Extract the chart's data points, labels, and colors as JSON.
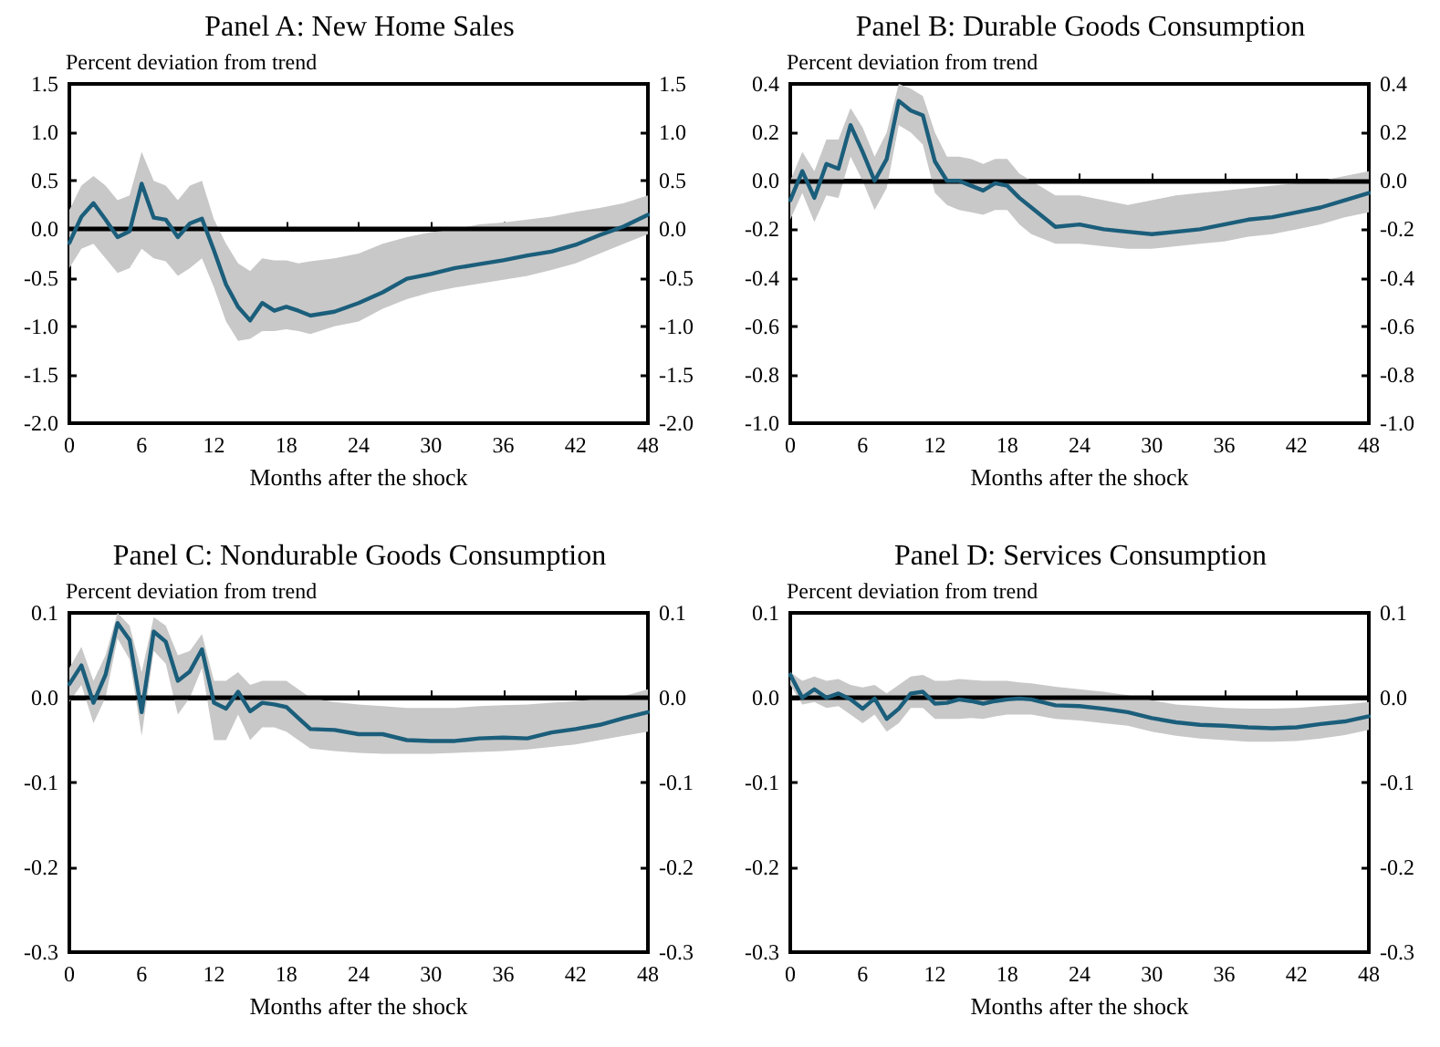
{
  "chart_data": [
    {
      "type": "line",
      "title": "Panel A: New Home Sales",
      "xlabel": "Months after the shock",
      "ylabel": "Percent deviation from trend",
      "xlim": [
        0,
        48
      ],
      "xticks": [
        0,
        6,
        12,
        18,
        24,
        30,
        36,
        42,
        48
      ],
      "ylim": [
        -2,
        1.5
      ],
      "yticks": [
        {
          "value": -2,
          "label": "-2.0"
        },
        {
          "value": -1.5,
          "label": "-1.5"
        },
        {
          "value": -1,
          "label": "-1.0"
        },
        {
          "value": -0.5,
          "label": "-0.5"
        },
        {
          "value": 0,
          "label": "0.0"
        },
        {
          "value": 0.5,
          "label": "0.5"
        },
        {
          "value": 1,
          "label": "1.0"
        },
        {
          "value": 1.5,
          "label": "1.5"
        }
      ],
      "y2lim": [
        -2,
        1.5
      ],
      "y2ticks": [
        {
          "value": -2,
          "label": "-2.0"
        },
        {
          "value": -1.5,
          "label": "-1.5"
        },
        {
          "value": -1,
          "label": "-1.0"
        },
        {
          "value": -0.5,
          "label": "-0.5"
        },
        {
          "value": 0,
          "label": "0.0"
        },
        {
          "value": 0.5,
          "label": "0.5"
        },
        {
          "value": 1,
          "label": "1.0"
        },
        {
          "value": 1.5,
          "label": "1.5"
        }
      ],
      "grid": false,
      "marker": "none",
      "line_style": "solid",
      "ref_lines": [
        {
          "axis": "y",
          "value": 0,
          "color": "#000000"
        }
      ],
      "series": [
        {
          "color": "#1b5e7b",
          "x": [
            0,
            1,
            2,
            3,
            4,
            5,
            6,
            7,
            8,
            9,
            10,
            11,
            12,
            13,
            14,
            15,
            16,
            17,
            18,
            19,
            20,
            22,
            24,
            26,
            28,
            30,
            32,
            34,
            36,
            38,
            40,
            42,
            44,
            46,
            48
          ],
          "values": [
            -0.14,
            0.13,
            0.27,
            0.1,
            -0.08,
            -0.02,
            0.47,
            0.12,
            0.1,
            -0.08,
            0.06,
            0.11,
            -0.22,
            -0.57,
            -0.8,
            -0.94,
            -0.76,
            -0.84,
            -0.8,
            -0.84,
            -0.89,
            -0.85,
            -0.76,
            -0.65,
            -0.51,
            -0.46,
            -0.4,
            -0.36,
            -0.32,
            -0.27,
            -0.23,
            -0.16,
            -0.06,
            0.03,
            0.15
          ],
          "lower": [
            -0.4,
            -0.2,
            -0.15,
            -0.3,
            -0.45,
            -0.4,
            -0.2,
            -0.3,
            -0.33,
            -0.48,
            -0.4,
            -0.3,
            -0.6,
            -0.95,
            -1.15,
            -1.13,
            -1.05,
            -1.05,
            -1.03,
            -1.05,
            -1.08,
            -1.0,
            -0.95,
            -0.82,
            -0.72,
            -0.65,
            -0.6,
            -0.56,
            -0.52,
            -0.48,
            -0.42,
            -0.35,
            -0.25,
            -0.15,
            -0.05
          ],
          "upper": [
            0.2,
            0.45,
            0.55,
            0.45,
            0.3,
            0.35,
            0.8,
            0.5,
            0.45,
            0.3,
            0.45,
            0.5,
            0.1,
            -0.15,
            -0.35,
            -0.43,
            -0.3,
            -0.32,
            -0.32,
            -0.35,
            -0.33,
            -0.3,
            -0.25,
            -0.15,
            -0.08,
            -0.03,
            0.0,
            0.05,
            0.07,
            0.1,
            0.13,
            0.18,
            0.22,
            0.27,
            0.35
          ]
        }
      ]
    },
    {
      "type": "line",
      "title": "Panel B: Durable Goods Consumption",
      "xlabel": "Months after the shock",
      "ylabel": "Percent deviation from trend",
      "xlim": [
        0,
        48
      ],
      "xticks": [
        0,
        6,
        12,
        18,
        24,
        30,
        36,
        42,
        48
      ],
      "ylim": [
        -1,
        0.4
      ],
      "yticks": [
        {
          "value": -1,
          "label": "-1.0"
        },
        {
          "value": -0.8,
          "label": "-0.8"
        },
        {
          "value": -0.6,
          "label": "-0.6"
        },
        {
          "value": -0.4,
          "label": "-0.4"
        },
        {
          "value": -0.2,
          "label": "-0.2"
        },
        {
          "value": 0,
          "label": "0.0"
        },
        {
          "value": 0.2,
          "label": "0.2"
        },
        {
          "value": 0.4,
          "label": "0.4"
        }
      ],
      "y2lim": [
        -1,
        0.4
      ],
      "y2ticks": [
        {
          "value": -1,
          "label": "-1.0"
        },
        {
          "value": -0.8,
          "label": "-0.8"
        },
        {
          "value": -0.6,
          "label": "-0.6"
        },
        {
          "value": -0.4,
          "label": "-0.4"
        },
        {
          "value": -0.2,
          "label": "-0.2"
        },
        {
          "value": 0,
          "label": "0.0"
        },
        {
          "value": 0.2,
          "label": "0.2"
        },
        {
          "value": 0.4,
          "label": "0.4"
        }
      ],
      "grid": false,
      "marker": "none",
      "line_style": "solid",
      "ref_lines": [
        {
          "axis": "y",
          "value": 0,
          "color": "#000000"
        }
      ],
      "series": [
        {
          "color": "#1b5e7b",
          "x": [
            0,
            1,
            2,
            3,
            4,
            5,
            6,
            7,
            8,
            9,
            10,
            11,
            12,
            13,
            14,
            15,
            16,
            17,
            18,
            19,
            20,
            22,
            24,
            26,
            28,
            30,
            32,
            34,
            36,
            38,
            40,
            42,
            44,
            46,
            48
          ],
          "values": [
            -0.08,
            0.04,
            -0.07,
            0.07,
            0.05,
            0.23,
            0.12,
            0.0,
            0.09,
            0.33,
            0.29,
            0.27,
            0.08,
            0.0,
            0.0,
            -0.02,
            -0.04,
            -0.01,
            -0.02,
            -0.07,
            -0.11,
            -0.19,
            -0.18,
            -0.2,
            -0.21,
            -0.22,
            -0.21,
            -0.2,
            -0.18,
            -0.16,
            -0.15,
            -0.13,
            -0.11,
            -0.08,
            -0.05
          ],
          "lower": [
            -0.16,
            -0.05,
            -0.17,
            -0.06,
            -0.07,
            0.1,
            0.0,
            -0.12,
            -0.03,
            0.23,
            0.2,
            0.15,
            -0.05,
            -0.1,
            -0.12,
            -0.13,
            -0.14,
            -0.12,
            -0.12,
            -0.18,
            -0.22,
            -0.26,
            -0.26,
            -0.27,
            -0.28,
            -0.28,
            -0.27,
            -0.26,
            -0.25,
            -0.23,
            -0.22,
            -0.2,
            -0.18,
            -0.15,
            -0.13
          ],
          "upper": [
            0.0,
            0.12,
            0.04,
            0.17,
            0.17,
            0.3,
            0.22,
            0.1,
            0.2,
            0.4,
            0.38,
            0.35,
            0.2,
            0.1,
            0.1,
            0.09,
            0.07,
            0.09,
            0.09,
            0.03,
            0.0,
            -0.06,
            -0.06,
            -0.08,
            -0.1,
            -0.08,
            -0.06,
            -0.05,
            -0.04,
            -0.03,
            -0.02,
            -0.01,
            0.0,
            0.02,
            0.04
          ]
        }
      ]
    },
    {
      "type": "line",
      "title": "Panel C: Nondurable Goods Consumption",
      "xlabel": "Months after the shock",
      "ylabel": "Percent deviation from trend",
      "xlim": [
        0,
        48
      ],
      "xticks": [
        0,
        6,
        12,
        18,
        24,
        30,
        36,
        42,
        48
      ],
      "ylim": [
        -0.3,
        0.1
      ],
      "yticks": [
        {
          "value": -0.3,
          "label": "-0.3"
        },
        {
          "value": -0.2,
          "label": "-0.2"
        },
        {
          "value": -0.1,
          "label": "-0.1"
        },
        {
          "value": 0,
          "label": "0.0"
        },
        {
          "value": 0.1,
          "label": "0.1"
        }
      ],
      "y2lim": [
        -0.3,
        0.1
      ],
      "y2ticks": [
        {
          "value": -0.3,
          "label": "-0.3"
        },
        {
          "value": -0.2,
          "label": "-0.2"
        },
        {
          "value": -0.1,
          "label": "-0.1"
        },
        {
          "value": 0,
          "label": "0.0"
        },
        {
          "value": 0.1,
          "label": "0.1"
        }
      ],
      "grid": false,
      "marker": "none",
      "line_style": "solid",
      "ref_lines": [
        {
          "axis": "y",
          "value": 0,
          "color": "#000000"
        }
      ],
      "series": [
        {
          "color": "#1b5e7b",
          "x": [
            0,
            1,
            2,
            3,
            4,
            5,
            6,
            7,
            8,
            9,
            10,
            11,
            12,
            13,
            14,
            15,
            16,
            17,
            18,
            19,
            20,
            22,
            24,
            26,
            28,
            30,
            32,
            34,
            36,
            38,
            40,
            42,
            44,
            46,
            48
          ],
          "values": [
            0.016,
            0.038,
            -0.006,
            0.027,
            0.088,
            0.068,
            -0.017,
            0.078,
            0.066,
            0.02,
            0.031,
            0.057,
            -0.006,
            -0.013,
            0.007,
            -0.016,
            -0.006,
            -0.008,
            -0.011,
            -0.024,
            -0.037,
            -0.038,
            -0.043,
            -0.043,
            -0.05,
            -0.051,
            -0.051,
            -0.048,
            -0.047,
            -0.048,
            -0.041,
            -0.037,
            -0.032,
            -0.024,
            -0.017
          ],
          "lower": [
            -0.005,
            0.015,
            -0.03,
            0.0,
            0.07,
            0.045,
            -0.045,
            0.055,
            0.04,
            -0.02,
            0.0,
            0.035,
            -0.05,
            -0.05,
            -0.02,
            -0.05,
            -0.035,
            -0.035,
            -0.04,
            -0.05,
            -0.06,
            -0.063,
            -0.065,
            -0.066,
            -0.066,
            -0.066,
            -0.065,
            -0.064,
            -0.063,
            -0.061,
            -0.058,
            -0.055,
            -0.05,
            -0.045,
            -0.04
          ],
          "upper": [
            0.035,
            0.06,
            0.02,
            0.05,
            0.1,
            0.085,
            0.03,
            0.095,
            0.085,
            0.05,
            0.055,
            0.075,
            0.02,
            0.02,
            0.03,
            0.015,
            0.02,
            0.02,
            0.02,
            0.01,
            0.0,
            -0.005,
            -0.008,
            -0.01,
            -0.012,
            -0.012,
            -0.012,
            -0.01,
            -0.009,
            -0.008,
            -0.006,
            -0.004,
            -0.001,
            0.002,
            0.01
          ]
        }
      ]
    },
    {
      "type": "line",
      "title": "Panel D: Services Consumption",
      "xlabel": "Months after the shock",
      "ylabel": "Percent deviation from trend",
      "xlim": [
        0,
        48
      ],
      "xticks": [
        0,
        6,
        12,
        18,
        24,
        30,
        36,
        42,
        48
      ],
      "ylim": [
        -0.3,
        0.1
      ],
      "yticks": [
        {
          "value": -0.3,
          "label": "-0.3"
        },
        {
          "value": -0.2,
          "label": "-0.2"
        },
        {
          "value": -0.1,
          "label": "-0.1"
        },
        {
          "value": 0,
          "label": "0.0"
        },
        {
          "value": 0.1,
          "label": "0.1"
        }
      ],
      "y2lim": [
        -0.3,
        0.1
      ],
      "y2ticks": [
        {
          "value": -0.3,
          "label": "-0.3"
        },
        {
          "value": -0.2,
          "label": "-0.2"
        },
        {
          "value": -0.1,
          "label": "-0.1"
        },
        {
          "value": 0,
          "label": "0.0"
        },
        {
          "value": 0.1,
          "label": "0.1"
        }
      ],
      "grid": false,
      "marker": "none",
      "line_style": "solid",
      "ref_lines": [
        {
          "axis": "y",
          "value": 0,
          "color": "#000000"
        }
      ],
      "series": [
        {
          "color": "#1b5e7b",
          "x": [
            0,
            1,
            2,
            3,
            4,
            5,
            6,
            7,
            8,
            9,
            10,
            11,
            12,
            13,
            14,
            15,
            16,
            17,
            18,
            19,
            20,
            22,
            24,
            26,
            28,
            30,
            32,
            34,
            36,
            38,
            40,
            42,
            44,
            46,
            48
          ],
          "values": [
            0.027,
            0.0,
            0.01,
            0.0,
            0.005,
            -0.002,
            -0.013,
            -0.001,
            -0.025,
            -0.013,
            0.005,
            0.007,
            -0.007,
            -0.006,
            -0.002,
            -0.004,
            -0.007,
            -0.004,
            -0.002,
            -0.001,
            -0.002,
            -0.009,
            -0.01,
            -0.013,
            -0.017,
            -0.024,
            -0.029,
            -0.032,
            -0.033,
            -0.035,
            -0.036,
            -0.035,
            -0.031,
            -0.028,
            -0.022
          ],
          "lower": [
            0.015,
            -0.008,
            -0.005,
            -0.012,
            -0.01,
            -0.02,
            -0.03,
            -0.02,
            -0.04,
            -0.03,
            -0.012,
            -0.012,
            -0.025,
            -0.025,
            -0.025,
            -0.024,
            -0.025,
            -0.022,
            -0.02,
            -0.02,
            -0.02,
            -0.025,
            -0.027,
            -0.03,
            -0.033,
            -0.04,
            -0.045,
            -0.048,
            -0.05,
            -0.052,
            -0.052,
            -0.051,
            -0.048,
            -0.044,
            -0.038
          ],
          "upper": [
            0.03,
            0.02,
            0.025,
            0.02,
            0.022,
            0.015,
            0.012,
            0.015,
            0.005,
            0.015,
            0.025,
            0.027,
            0.02,
            0.02,
            0.022,
            0.021,
            0.02,
            0.02,
            0.02,
            0.018,
            0.017,
            0.013,
            0.01,
            0.007,
            0.003,
            -0.003,
            -0.008,
            -0.01,
            -0.012,
            -0.013,
            -0.013,
            -0.012,
            -0.01,
            -0.008,
            -0.005
          ]
        }
      ]
    }
  ]
}
